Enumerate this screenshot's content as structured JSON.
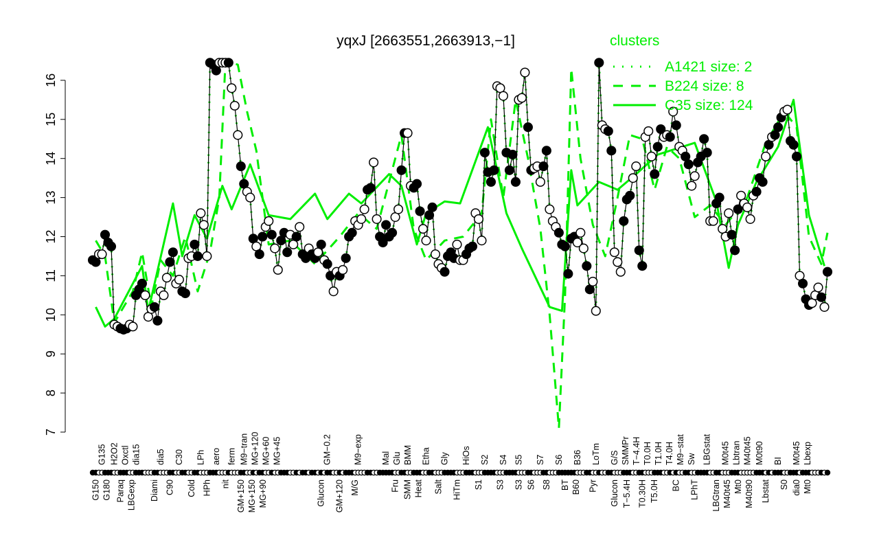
{
  "chart_data": {
    "type": "line",
    "title": "yqxJ [2663551,2663913,−1]",
    "xlabel": "",
    "ylabel": "",
    "ylim": [
      7,
      16.6
    ],
    "yticks": [
      7,
      8,
      9,
      10,
      11,
      12,
      13,
      14,
      15,
      16
    ],
    "grid": false,
    "legend": {
      "title": "clusters",
      "placement": "top-right",
      "color": "#00ee00",
      "entries": [
        {
          "label": "A1421 size: 2",
          "style": "dotted"
        },
        {
          "label": "B224 size: 8",
          "style": "dashed"
        },
        {
          "label": "C35 size: 124",
          "style": "solid"
        }
      ]
    },
    "points": {
      "values": [
        11.4,
        11.35,
        11.55,
        11.55,
        12.05,
        11.85,
        11.75,
        9.75,
        9.7,
        9.65,
        9.62,
        9.65,
        9.75,
        9.7,
        10.5,
        10.65,
        10.8,
        10.5,
        9.95,
        10.15,
        10.2,
        9.85,
        10.6,
        10.5,
        10.95,
        11.35,
        11.6,
        10.8,
        10.9,
        10.6,
        10.55,
        11.45,
        11.5,
        11.8,
        11.5,
        12.6,
        12.3,
        11.5,
        16.45,
        16.4,
        16.25,
        16.45,
        16.45,
        16.45,
        16.45,
        15.8,
        15.35,
        14.6,
        13.8,
        13.35,
        13.15,
        13.0,
        11.95,
        11.75,
        11.55,
        12.0,
        12.25,
        12.4,
        12.05,
        11.7,
        11.15,
        11.9,
        12.1,
        11.6,
        12.05,
        11.8,
        12.0,
        12.25,
        11.55,
        11.45,
        11.7,
        11.55,
        11.45,
        11.6,
        11.8,
        11.4,
        11.3,
        11.0,
        10.6,
        11.1,
        11.0,
        11.15,
        11.45,
        12.0,
        12.1,
        12.4,
        12.3,
        12.45,
        12.7,
        13.2,
        13.25,
        13.9,
        12.45,
        12.0,
        11.85,
        12.3,
        12.0,
        12.1,
        12.5,
        12.7,
        13.7,
        14.65,
        14.65,
        13.3,
        13.25,
        13.35,
        12.65,
        12.2,
        11.9,
        12.55,
        12.75,
        11.55,
        11.3,
        11.2,
        11.1,
        11.5,
        11.6,
        11.45,
        11.8,
        11.4,
        11.4,
        11.55,
        11.7,
        11.75,
        12.6,
        12.45,
        11.9,
        14.15,
        13.65,
        13.4,
        13.7,
        15.85,
        15.8,
        15.6,
        14.15,
        13.7,
        14.1,
        13.4,
        15.5,
        15.55,
        16.2,
        14.8,
        13.7,
        13.75,
        13.8,
        13.4,
        13.8,
        14.2,
        12.7,
        12.4,
        12.25,
        12.1,
        11.8,
        11.75,
        11.05,
        11.95,
        12.0,
        11.85,
        12.1,
        11.7,
        11.25,
        10.65,
        10.85,
        10.1,
        16.45,
        14.85,
        14.75,
        14.7,
        14.2,
        11.6,
        11.35,
        11.1,
        12.4,
        12.95,
        13.05,
        13.5,
        13.8,
        11.65,
        11.25,
        14.55,
        14.7,
        14.05,
        13.6,
        14.3,
        14.75,
        14.55,
        14.6,
        14.55,
        15.2,
        14.85,
        14.3,
        14.2,
        14.05,
        13.85,
        13.3,
        13.55,
        13.9,
        14.05,
        14.5,
        14.15,
        12.4,
        12.4,
        12.85,
        13.0,
        12.2,
        12.0,
        12.6,
        12.05,
        11.65,
        12.7,
        13.05,
        12.85,
        12.75,
        12.45,
        13.05,
        13.15,
        13.5,
        13.4,
        14.05,
        14.35,
        14.55,
        14.6,
        14.8,
        15.05,
        15.2,
        15.25,
        14.45,
        14.35,
        14.05,
        11.0,
        10.8,
        10.4,
        10.25,
        10.3,
        10.5,
        10.7,
        10.45,
        10.2,
        11.1
      ],
      "filled": [
        1,
        1,
        0,
        0,
        1,
        1,
        1,
        0,
        0,
        1,
        1,
        1,
        0,
        0,
        1,
        1,
        1,
        0,
        0,
        0,
        1,
        1,
        0,
        0,
        0,
        1,
        1,
        0,
        0,
        1,
        1,
        0,
        0,
        1,
        1,
        0,
        0,
        0,
        1,
        1,
        1,
        0,
        0,
        0,
        1,
        0,
        0,
        0,
        1,
        1,
        0,
        0,
        1,
        0,
        1,
        1,
        0,
        0,
        1,
        0,
        0,
        1,
        1,
        1,
        0,
        0,
        1,
        0,
        1,
        1,
        0,
        1,
        1,
        0,
        1,
        0,
        1,
        1,
        0,
        0,
        1,
        0,
        1,
        1,
        1,
        0,
        0,
        0,
        0,
        1,
        1,
        0,
        0,
        1,
        1,
        1,
        1,
        1,
        0,
        0,
        1,
        1,
        0,
        0,
        1,
        1,
        1,
        0,
        0,
        1,
        1,
        0,
        0,
        0,
        1,
        1,
        1,
        1,
        0,
        0,
        0,
        1,
        1,
        1,
        0,
        0,
        0,
        1,
        1,
        1,
        1,
        0,
        0,
        0,
        1,
        1,
        1,
        1,
        0,
        0,
        0,
        1,
        1,
        0,
        0,
        0,
        1,
        1,
        0,
        0,
        0,
        1,
        1,
        1,
        1,
        1,
        1,
        0,
        0,
        0,
        1,
        1,
        0,
        0,
        1,
        0,
        0,
        1,
        1,
        0,
        0,
        0,
        1,
        1,
        1,
        0,
        0,
        1,
        1,
        0,
        0,
        0,
        1,
        1,
        1,
        0,
        0,
        1,
        0,
        1,
        0,
        0,
        1,
        1,
        0,
        0,
        1,
        1,
        1,
        1,
        0,
        0,
        1,
        1,
        0,
        0,
        0,
        1,
        1,
        1,
        0,
        0,
        0,
        0,
        0,
        1,
        1,
        1,
        0,
        1,
        0,
        1,
        1,
        1,
        0,
        0,
        1,
        1,
        1,
        0,
        1,
        1,
        1,
        0,
        0,
        0,
        1,
        0,
        1
      ]
    },
    "series": [
      {
        "name": "C35 size: 124",
        "style": "solid",
        "color": "#00ee00",
        "x": [
          1,
          4,
          7,
          16,
          18,
          26,
          29,
          33,
          37,
          42,
          45,
          51,
          57,
          64,
          72,
          76,
          83,
          87,
          96,
          100,
          105,
          108,
          114,
          119,
          128,
          134,
          139,
          148,
          152,
          155,
          157,
          164,
          170,
          176,
          183,
          195,
          202,
          206,
          209,
          215,
          222,
          227,
          232,
          237
        ],
        "y": [
          10.2,
          9.7,
          9.9,
          11.25,
          10.1,
          12.85,
          11.5,
          12.55,
          11.95,
          13.3,
          12.7,
          13.85,
          12.55,
          12.45,
          13.1,
          12.45,
          13.1,
          12.85,
          13.6,
          13.3,
          11.8,
          12.6,
          12.9,
          12.85,
          14.8,
          12.6,
          11.7,
          10.2,
          10.1,
          13.7,
          12.8,
          13.4,
          13.2,
          13.6,
          14.1,
          14.4,
          12.9,
          11.2,
          12.3,
          13.4,
          14.3,
          15.5,
          12.55,
          11.25
        ]
      },
      {
        "name": "B224 size: 8",
        "style": "dashed",
        "color": "#00ee00",
        "x": [
          1,
          4,
          7,
          13,
          16,
          19,
          22,
          26,
          30,
          34,
          38,
          41,
          43,
          47,
          50,
          53,
          57,
          64,
          72,
          80,
          86,
          92,
          100,
          104,
          108,
          114,
          120,
          126,
          129,
          133,
          137,
          141,
          145,
          148,
          151,
          153,
          155,
          158,
          162,
          166,
          170,
          174,
          178,
          182,
          186,
          190,
          195,
          200,
          205,
          212,
          218,
          224,
          228,
          232,
          236,
          238
        ],
        "y": [
          11.9,
          11.5,
          9.8,
          10.6,
          11.6,
          10.2,
          11.4,
          11.0,
          12.0,
          10.6,
          11.6,
          13.0,
          16.5,
          16.4,
          15.2,
          14.2,
          11.8,
          11.9,
          11.3,
          12.0,
          12.6,
          12.2,
          14.6,
          12.2,
          11.4,
          11.9,
          12.0,
          12.6,
          15.0,
          13.0,
          15.5,
          14.0,
          12.2,
          10.0,
          7.1,
          10.5,
          16.3,
          14.0,
          12.3,
          11.5,
          13.0,
          14.6,
          14.5,
          13.2,
          14.3,
          14.0,
          12.5,
          12.8,
          12.3,
          13.0,
          14.4,
          15.2,
          14.8,
          12.0,
          11.3,
          12.1
        ]
      }
    ],
    "xtick_labels_top": [
      {
        "label": "G135",
        "at": 3
      },
      {
        "label": "H2O2",
        "at": 7
      },
      {
        "label": "Oxctl",
        "at": 10
      },
      {
        "label": "dia15",
        "at": 14
      },
      {
        "label": "dia5",
        "at": 22
      },
      {
        "label": "C30",
        "at": 28
      },
      {
        "label": "LPh",
        "at": 35
      },
      {
        "label": "aero",
        "at": 40
      },
      {
        "label": "ferm",
        "at": 45
      },
      {
        "label": "M9−tran",
        "at": 49
      },
      {
        "label": "MG+120",
        "at": 52
      },
      {
        "label": "MG+60",
        "at": 55
      },
      {
        "label": "MG+45",
        "at": 58
      },
      {
        "label": "GM−0.2",
        "at": 76
      },
      {
        "label": "M9−exp",
        "at": 86
      },
      {
        "label": "Mal",
        "at": 95
      },
      {
        "label": "Glu",
        "at": 98
      },
      {
        "label": "BMM",
        "at": 102
      },
      {
        "label": "Etha",
        "at": 108
      },
      {
        "label": "Gly",
        "at": 114
      },
      {
        "label": "HiOs",
        "at": 121
      },
      {
        "label": "S2",
        "at": 127
      },
      {
        "label": "S4",
        "at": 133
      },
      {
        "label": "S5",
        "at": 138
      },
      {
        "label": "S7",
        "at": 145
      },
      {
        "label": "S6",
        "at": 151
      },
      {
        "label": "B36",
        "at": 157
      },
      {
        "label": "LoTm",
        "at": 163
      },
      {
        "label": "G/S",
        "at": 169
      },
      {
        "label": "SMMPr",
        "at": 172
      },
      {
        "label": "T−4.4H",
        "at": 174
      },
      {
        "label": "T0.0H",
        "at": 177
      },
      {
        "label": "T1.0H",
        "at": 180
      },
      {
        "label": "T4.0H",
        "at": 182
      },
      {
        "label": "M9−stat",
        "at": 184
      },
      {
        "label": "Sw",
        "at": 193
      },
      {
        "label": "LBGstat",
        "at": 199
      },
      {
        "label": "M0t45",
        "at": 205
      },
      {
        "label": "Lbtran",
        "at": 207
      },
      {
        "label": "M40t45",
        "at": 210
      },
      {
        "label": "M0t90",
        "at": 216
      },
      {
        "label": "BI",
        "at": 222
      },
      {
        "label": "M0t45",
        "at": 228
      },
      {
        "label": "Lbexp",
        "at": 230
      }
    ],
    "xtick_labels_bottom": [
      {
        "label": "G150",
        "at": 1
      },
      {
        "label": "G180",
        "at": 4
      },
      {
        "label": "Paraq",
        "at": 9
      },
      {
        "label": "LBGexp",
        "at": 12
      },
      {
        "label": "Diami",
        "at": 20
      },
      {
        "label": "C90",
        "at": 25
      },
      {
        "label": "Cold",
        "at": 32
      },
      {
        "label": "HPh",
        "at": 37
      },
      {
        "label": "nit",
        "at": 43
      },
      {
        "label": "GM+150",
        "at": 48
      },
      {
        "label": "MG+150",
        "at": 51
      },
      {
        "label": "MG+90",
        "at": 55
      },
      {
        "label": "Glucon",
        "at": 74
      },
      {
        "label": "GM+120",
        "at": 80
      },
      {
        "label": "M/G",
        "at": 85
      },
      {
        "label": "Fru",
        "at": 98
      },
      {
        "label": "SMM",
        "at": 102
      },
      {
        "label": "Heat",
        "at": 104
      },
      {
        "label": "Salt",
        "at": 112
      },
      {
        "label": "HiTm",
        "at": 118
      },
      {
        "label": "S1",
        "at": 125
      },
      {
        "label": "S3",
        "at": 132
      },
      {
        "label": "S3",
        "at": 138
      },
      {
        "label": "S6",
        "at": 142
      },
      {
        "label": "S8",
        "at": 147
      },
      {
        "label": "BT",
        "at": 153
      },
      {
        "label": "B60",
        "at": 156
      },
      {
        "label": "Pyr",
        "at": 162
      },
      {
        "label": "Glucon",
        "at": 169
      },
      {
        "label": "T−5.4H",
        "at": 173
      },
      {
        "label": "T0.30H",
        "at": 178
      },
      {
        "label": "T5.0H",
        "at": 182
      },
      {
        "label": "BC",
        "at": 189
      },
      {
        "label": "LPhT",
        "at": 195
      },
      {
        "label": "LBGtran",
        "at": 202
      },
      {
        "label": "M40t45",
        "at": 205
      },
      {
        "label": "Mt0",
        "at": 209
      },
      {
        "label": "M40t90",
        "at": 212
      },
      {
        "label": "Lbstat",
        "at": 218
      },
      {
        "label": "S0",
        "at": 224
      },
      {
        "label": "dia0",
        "at": 228
      },
      {
        "label": "Mt0",
        "at": 231
      }
    ]
  }
}
